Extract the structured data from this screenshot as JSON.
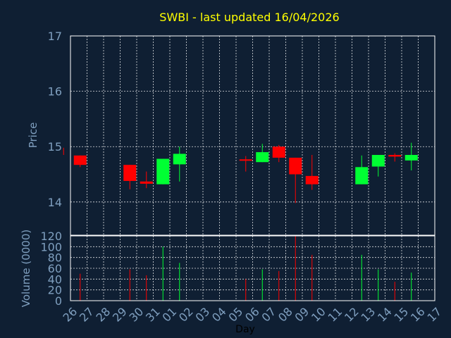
{
  "chart_data": [
    {
      "type": "candlestick",
      "title": "SWBI - last updated 16/04/2026",
      "ylabel": "Price",
      "ylim": [
        13.4,
        17
      ],
      "yticks": [
        14,
        15,
        16,
        17
      ],
      "grid": true,
      "colors": {
        "up": "#00ff33",
        "down": "#ff0000",
        "neutral": "#ff0000"
      },
      "candles": [
        {
          "day": "26",
          "open": 14.98,
          "high": 14.98,
          "low": 14.85,
          "close": 14.85
        },
        {
          "day": "27",
          "open": 14.84,
          "high": 14.84,
          "low": 14.63,
          "close": 14.67
        },
        {
          "day": "30",
          "open": 14.67,
          "high": 14.67,
          "low": 14.23,
          "close": 14.38
        },
        {
          "day": "31",
          "open": 14.37,
          "high": 14.55,
          "low": 14.25,
          "close": 14.33
        },
        {
          "day": "01",
          "open": 14.32,
          "high": 14.78,
          "low": 14.32,
          "close": 14.78
        },
        {
          "day": "02",
          "open": 14.68,
          "high": 15.0,
          "low": 14.37,
          "close": 14.87
        },
        {
          "day": "06",
          "open": 14.77,
          "high": 14.83,
          "low": 14.55,
          "close": 14.75
        },
        {
          "day": "07",
          "open": 14.72,
          "high": 15.05,
          "low": 14.72,
          "close": 14.9
        },
        {
          "day": "08",
          "open": 15.0,
          "high": 15.03,
          "low": 14.72,
          "close": 14.8
        },
        {
          "day": "09",
          "open": 14.8,
          "high": 14.8,
          "low": 13.98,
          "close": 14.5
        },
        {
          "day": "10",
          "open": 14.47,
          "high": 14.85,
          "low": 14.22,
          "close": 14.32
        },
        {
          "day": "13",
          "open": 14.32,
          "high": 14.84,
          "low": 14.32,
          "close": 14.63
        },
        {
          "day": "14",
          "open": 14.64,
          "high": 14.85,
          "low": 14.46,
          "close": 14.85
        },
        {
          "day": "15",
          "open": 14.85,
          "high": 14.88,
          "low": 14.73,
          "close": 14.82
        },
        {
          "day": "16",
          "open": 14.75,
          "high": 15.07,
          "low": 14.57,
          "close": 14.85
        }
      ]
    },
    {
      "type": "bar",
      "ylabel": "Volume (0000)",
      "xlabel": "Day",
      "ylim": [
        0,
        120
      ],
      "yticks": [
        0,
        20,
        40,
        60,
        80,
        100,
        120
      ],
      "categories": [
        "26",
        "27",
        "28",
        "29",
        "30",
        "31",
        "01",
        "02",
        "03",
        "04",
        "05",
        "06",
        "07",
        "08",
        "09",
        "10",
        "11",
        "12",
        "13",
        "14",
        "15",
        "16",
        "17"
      ],
      "series": [
        {
          "values": [
            0,
            50,
            0,
            0,
            58,
            47,
            100,
            70,
            0,
            0,
            0,
            40,
            58,
            55,
            120,
            85,
            0,
            0,
            85,
            58,
            35,
            52,
            0
          ],
          "colors_by_point": [
            "",
            "#ff0000",
            "",
            "",
            "#ff0000",
            "#ff0000",
            "#00ff33",
            "#00ff33",
            "",
            "",
            "",
            "#ff0000",
            "#00ff33",
            "#ff0000",
            "#ff0000",
            "#ff0000",
            "",
            "",
            "#00ff33",
            "#00ff33",
            "#ff0000",
            "#00ff33",
            ""
          ]
        }
      ]
    }
  ]
}
